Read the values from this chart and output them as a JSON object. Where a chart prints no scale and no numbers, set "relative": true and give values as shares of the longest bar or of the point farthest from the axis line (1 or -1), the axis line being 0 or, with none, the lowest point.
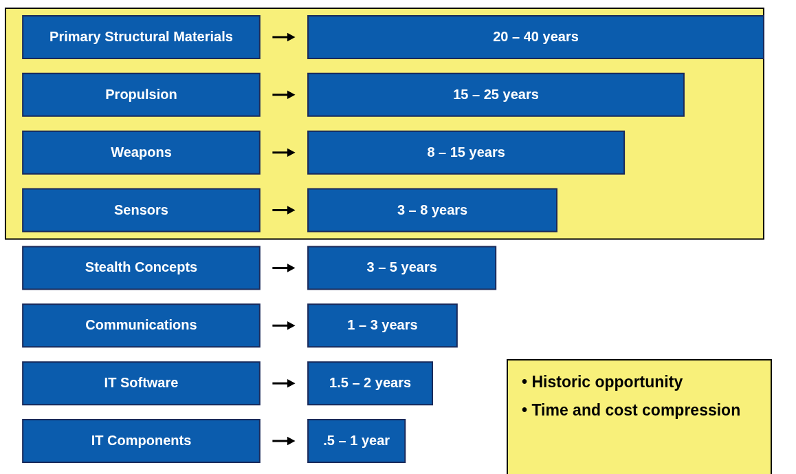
{
  "chart_data": {
    "type": "bar",
    "orientation": "horizontal",
    "relative": true,
    "categories": [
      "Primary Structural Materials",
      "Propulsion",
      "Weapons",
      "Sensors",
      "Stealth Concepts",
      "Communications",
      "IT Software",
      "IT Components"
    ],
    "values": [
      1,
      0.825,
      0.694,
      0.546,
      0.412,
      0.327,
      0.273,
      0.213
    ],
    "color": "#0b5cad",
    "bands": [
      {
        "axis": "y",
        "from": "Primary Structural Materials",
        "to": "Sensors",
        "color": "#f8f07a"
      }
    ],
    "annotations": [
      {
        "text": "20 – 40 years",
        "y": "Primary Structural Materials"
      },
      {
        "text": "15 – 25 years",
        "y": "Propulsion"
      },
      {
        "text": "8 – 15 years",
        "y": "Weapons"
      },
      {
        "text": "3 – 8 years",
        "y": "Sensors"
      },
      {
        "text": "3 – 5  years",
        "y": "Stealth Concepts"
      },
      {
        "text": "1 – 3  years",
        "y": "Communications"
      },
      {
        "text": "1.5 – 2  years",
        "y": "IT Software"
      },
      {
        "text": ".5 – 1 year",
        "y": "IT Components"
      },
      "• Historic opportunity",
      "• Time and cost compression"
    ]
  }
}
